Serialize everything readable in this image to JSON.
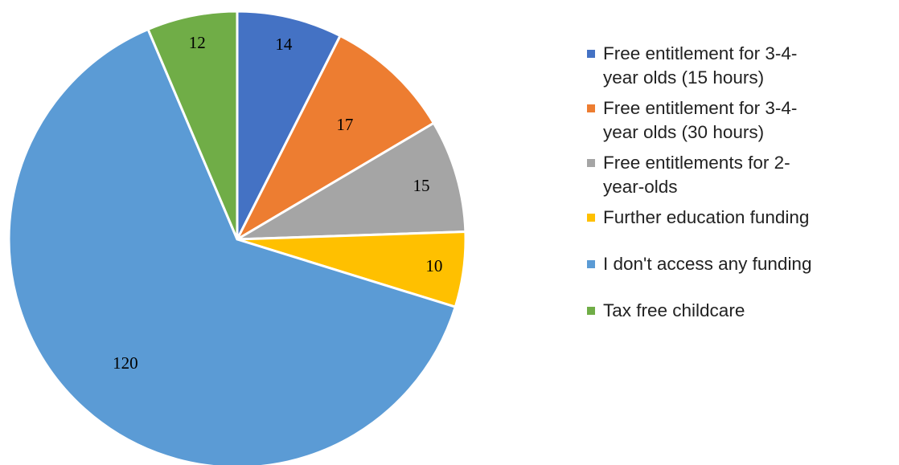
{
  "chart_data": {
    "type": "pie",
    "title": "",
    "slices": [
      {
        "label": "Free entitlement for 3-4-year olds (15 hours)",
        "legend_lines": [
          "Free entitlement for 3-4-",
          "year olds (15 hours)"
        ],
        "value": 14,
        "color": "#4472C4"
      },
      {
        "label": "Free entitlement for 3-4-year olds (30 hours)",
        "legend_lines": [
          "Free entitlement for 3-4-",
          "year olds (30 hours)"
        ],
        "value": 17,
        "color": "#ED7D31"
      },
      {
        "label": "Free entitlements for 2-year-olds",
        "legend_lines": [
          "Free entitlements for 2-",
          "year-olds"
        ],
        "value": 15,
        "color": "#A5A5A5"
      },
      {
        "label": "Further education funding",
        "legend_lines": [
          "Further education funding"
        ],
        "value": 10,
        "color": "#FFC000"
      },
      {
        "label": "I don't access any funding",
        "legend_lines": [
          "I don't access any funding"
        ],
        "value": 120,
        "color": "#5B9BD5"
      },
      {
        "label": "Tax free childcare",
        "legend_lines": [
          "Tax free childcare"
        ],
        "value": 12,
        "color": "#70AD47"
      }
    ],
    "start_angle": "12 o'clock",
    "direction": "clockwise",
    "legend_position": "right"
  }
}
